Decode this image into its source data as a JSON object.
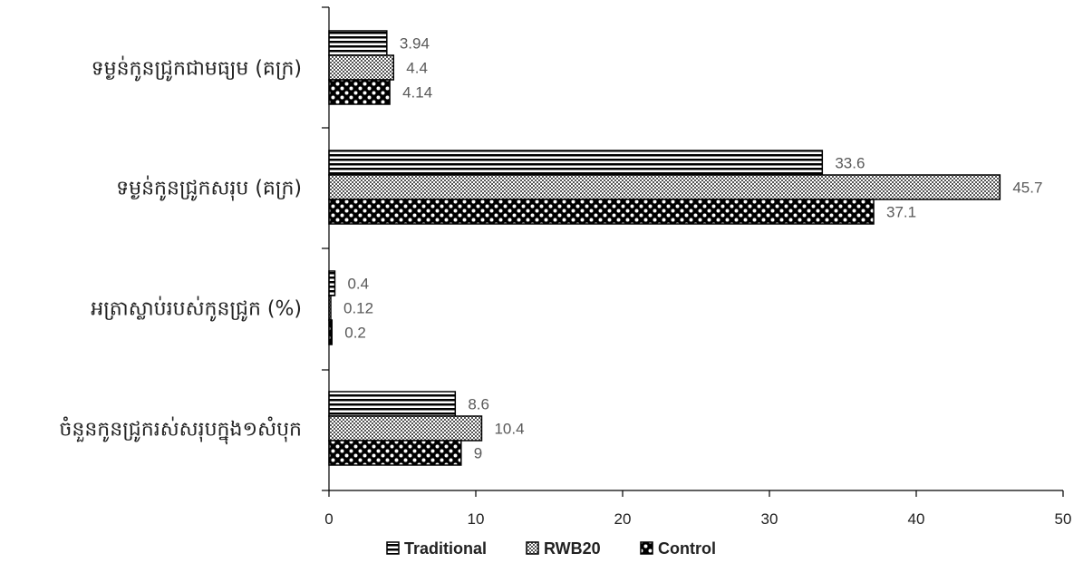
{
  "chart_data": {
    "type": "bar",
    "orientation": "horizontal",
    "categories": [
      "ទម្ងន់កូនជ្រូកជាមធ្យម (គក្រ)",
      "ទម្ងន់កូនជ្រូកសរុប (គក្រ)",
      "អត្រាស្លាប់របស់កូនជ្រូក (%)",
      "ចំនួនកូនជ្រូករស់សរុបក្នុង១សំបុក"
    ],
    "series": [
      {
        "name": "Traditional",
        "values": [
          3.94,
          33.6,
          0.4,
          8.6
        ],
        "value_labels": [
          "3.94",
          "33.6",
          "0.4",
          "8.6"
        ],
        "pattern": "horizontal-stripes"
      },
      {
        "name": "RWB20",
        "values": [
          4.4,
          45.7,
          0.12,
          10.4
        ],
        "value_labels": [
          "4.4",
          "45.7",
          "0.12",
          "10.4"
        ],
        "pattern": "crosshatch"
      },
      {
        "name": "Control",
        "values": [
          4.14,
          37.1,
          0.2,
          9
        ],
        "value_labels": [
          "4.14",
          "37.1",
          "0.2",
          "9"
        ],
        "pattern": "dotted-checker"
      }
    ],
    "xlim": [
      0,
      50
    ],
    "xticks": [
      "0",
      "10",
      "20",
      "30",
      "40",
      "50"
    ],
    "grid": false,
    "legend_position": "bottom",
    "title": "",
    "xlabel": "",
    "ylabel": ""
  },
  "colors": {
    "axis": "#000000",
    "bar_stroke": "#000000",
    "data_label": "#595959"
  }
}
